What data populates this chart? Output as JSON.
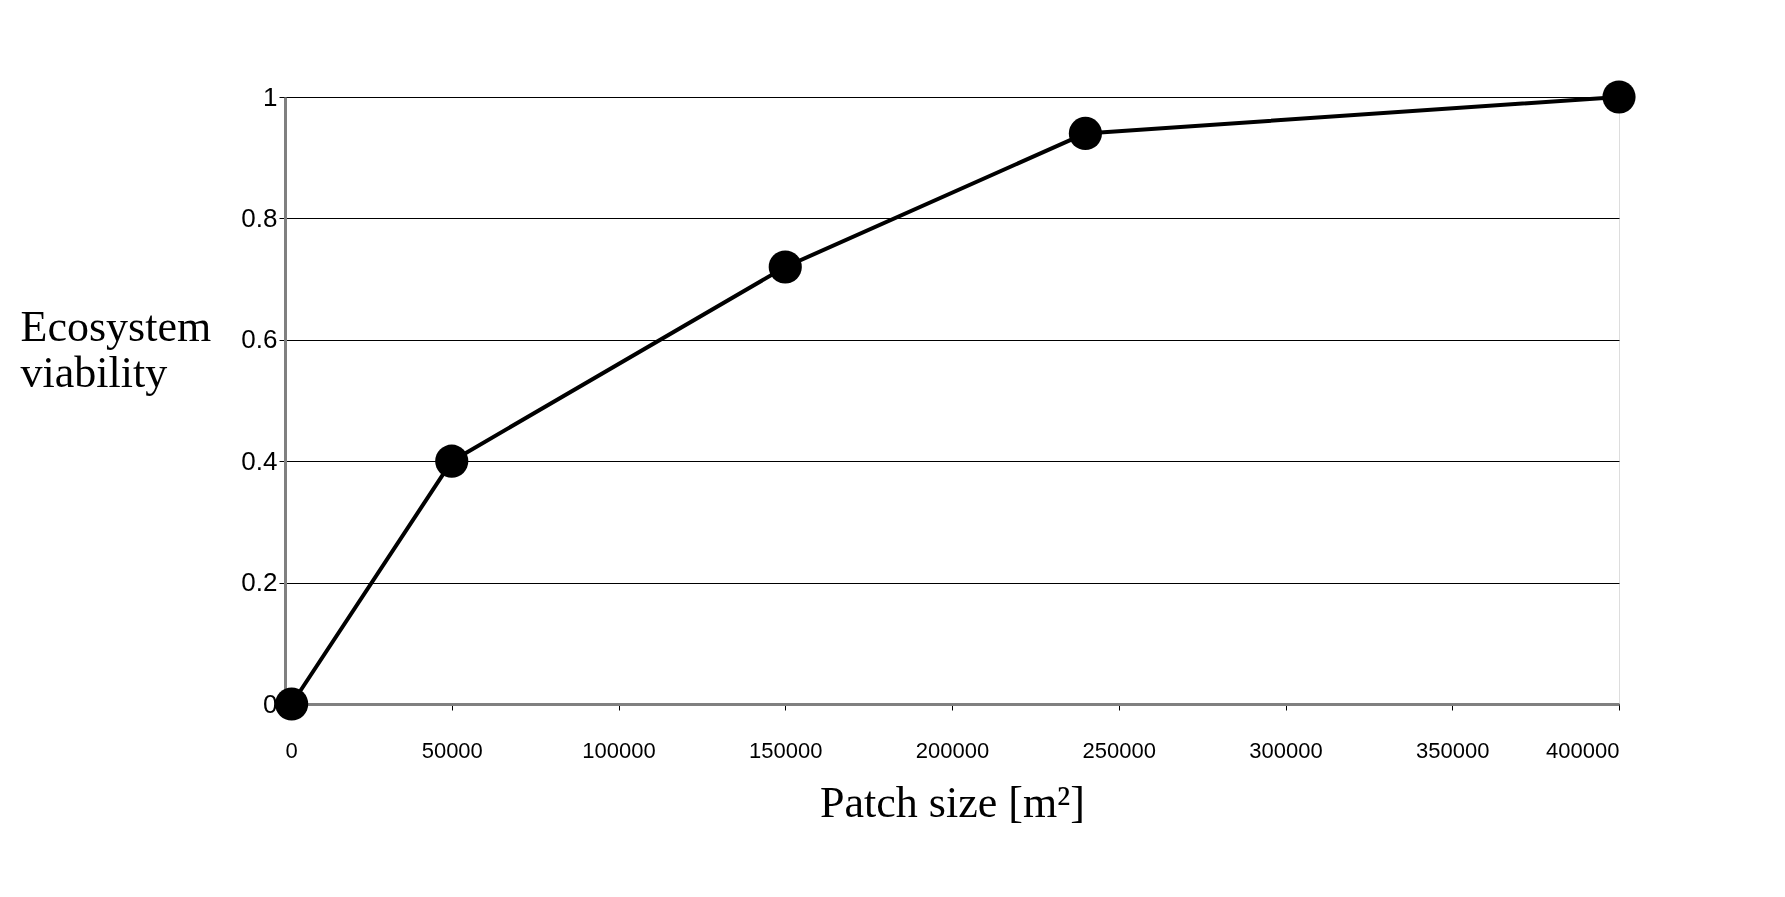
{
  "chart_data": {
    "type": "line",
    "xlabel": "Patch size [m²]",
    "ylabel": "Ecosystem viability",
    "x": [
      2000,
      50000,
      150000,
      240000,
      400000
    ],
    "series": [
      {
        "color": "#000000",
        "values": [
          0,
          0.4,
          0.72,
          0.94,
          1
        ]
      }
    ],
    "xlim": [
      0,
      400000
    ],
    "xticks": [
      0,
      50000,
      100000,
      150000,
      200000,
      250000,
      300000,
      350000,
      400000
    ],
    "ylim": [
      0,
      1
    ],
    "yticks": [
      0,
      0.2,
      0.4,
      0.6,
      0.8,
      1
    ],
    "grid": "y",
    "marker": "circle",
    "line_style": "solid"
  }
}
